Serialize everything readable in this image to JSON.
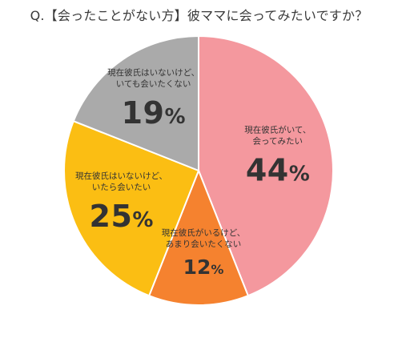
{
  "chart_data": {
    "type": "pie",
    "title": "Q.【会ったことがない方】彼ママに会ってみたいですか？",
    "unit": "%",
    "slices": [
      {
        "label_lines": [
          "現在彼氏がいて、",
          "会ってみたい"
        ],
        "value": 44,
        "color": "#f4989e"
      },
      {
        "label_lines": [
          "現在彼氏がいるけど、",
          "あまり会いたくない"
        ],
        "value": 12,
        "color": "#f5822f"
      },
      {
        "label_lines": [
          "現在彼氏はいないけど、",
          "いたら会いたい"
        ],
        "value": 25,
        "color": "#fbbe13"
      },
      {
        "label_lines": [
          "現在彼氏はいないけど、",
          "いても会いたくない"
        ],
        "value": 19,
        "color": "#aaaaaa"
      }
    ]
  }
}
